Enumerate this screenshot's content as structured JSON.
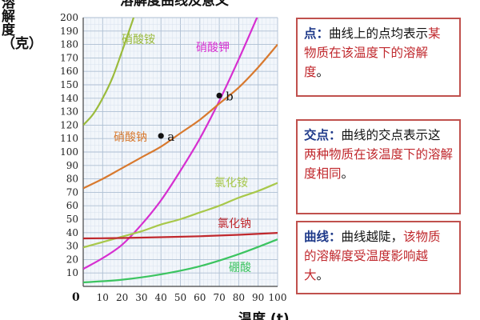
{
  "chart_data": {
    "type": "line",
    "title": "溶解度曲线及意义",
    "xlabel": "温度 (t)",
    "ylabel": "溶解度（克）",
    "xlim": [
      0,
      100
    ],
    "ylim": [
      0,
      200
    ],
    "x_ticks": [
      10,
      20,
      30,
      40,
      50,
      60,
      70,
      80,
      90,
      100
    ],
    "y_ticks": [
      10,
      20,
      30,
      40,
      50,
      60,
      70,
      80,
      90,
      100,
      110,
      120,
      130,
      140,
      150,
      160,
      170,
      180,
      190,
      200
    ],
    "origin_label": "0",
    "grid": true,
    "series": [
      {
        "name": "硝酸铵",
        "color": "#9bbb3c",
        "points": [
          [
            0,
            120
          ],
          [
            5,
            128
          ],
          [
            10,
            140
          ],
          [
            15,
            155
          ],
          [
            20,
            175
          ],
          [
            25,
            196
          ],
          [
            27,
            205
          ]
        ]
      },
      {
        "name": "硝酸钾",
        "color": "#d62fd0",
        "points": [
          [
            0,
            13
          ],
          [
            10,
            21
          ],
          [
            20,
            31
          ],
          [
            30,
            46
          ],
          [
            40,
            64
          ],
          [
            50,
            86
          ],
          [
            60,
            110
          ],
          [
            70,
            138
          ],
          [
            80,
            169
          ],
          [
            90,
            202
          ]
        ]
      },
      {
        "name": "硝酸钠",
        "color": "#d8792e",
        "points": [
          [
            0,
            73
          ],
          [
            10,
            80
          ],
          [
            20,
            88
          ],
          [
            30,
            96
          ],
          [
            40,
            104
          ],
          [
            50,
            114
          ],
          [
            60,
            124
          ],
          [
            70,
            136
          ],
          [
            80,
            148
          ],
          [
            90,
            163
          ],
          [
            100,
            180
          ]
        ]
      },
      {
        "name": "氯化铵",
        "color": "#a8c84a",
        "points": [
          [
            0,
            29
          ],
          [
            10,
            33
          ],
          [
            20,
            37
          ],
          [
            30,
            41
          ],
          [
            40,
            46
          ],
          [
            50,
            50
          ],
          [
            60,
            55
          ],
          [
            70,
            60
          ],
          [
            80,
            66
          ],
          [
            90,
            71
          ],
          [
            100,
            77
          ]
        ]
      },
      {
        "name": "氯化钠",
        "color": "#c0282d",
        "points": [
          [
            0,
            35.7
          ],
          [
            20,
            36
          ],
          [
            40,
            36.6
          ],
          [
            60,
            37.3
          ],
          [
            80,
            38.4
          ],
          [
            100,
            39.8
          ]
        ]
      },
      {
        "name": "硼酸",
        "color": "#3cc460",
        "points": [
          [
            0,
            3
          ],
          [
            20,
            5
          ],
          [
            40,
            9
          ],
          [
            60,
            15
          ],
          [
            80,
            24
          ],
          [
            100,
            35
          ]
        ]
      }
    ],
    "points": [
      {
        "label": "a",
        "x": 40,
        "y": 112
      },
      {
        "label": "b",
        "x": 70,
        "y": 142
      }
    ]
  },
  "notes": [
    {
      "keyword": "点：",
      "parts": [
        {
          "text": "曲线上的点均表示",
          "hl": false
        },
        {
          "text": "某物质在该温度下的溶解度",
          "hl": true
        },
        {
          "text": "。",
          "hl": false
        }
      ]
    },
    {
      "keyword": "交点：",
      "parts": [
        {
          "text": "曲线的交点表示这",
          "hl": false
        },
        {
          "text": "两种物质在该温度下的溶解度相同",
          "hl": true
        },
        {
          "text": "。",
          "hl": false
        }
      ]
    },
    {
      "keyword": "曲线：",
      "parts": [
        {
          "text": "曲线越陡，",
          "hl": false
        },
        {
          "text": "该物质的溶解度受温度影响越大",
          "hl": true
        },
        {
          "text": "。",
          "hl": false
        }
      ]
    }
  ]
}
